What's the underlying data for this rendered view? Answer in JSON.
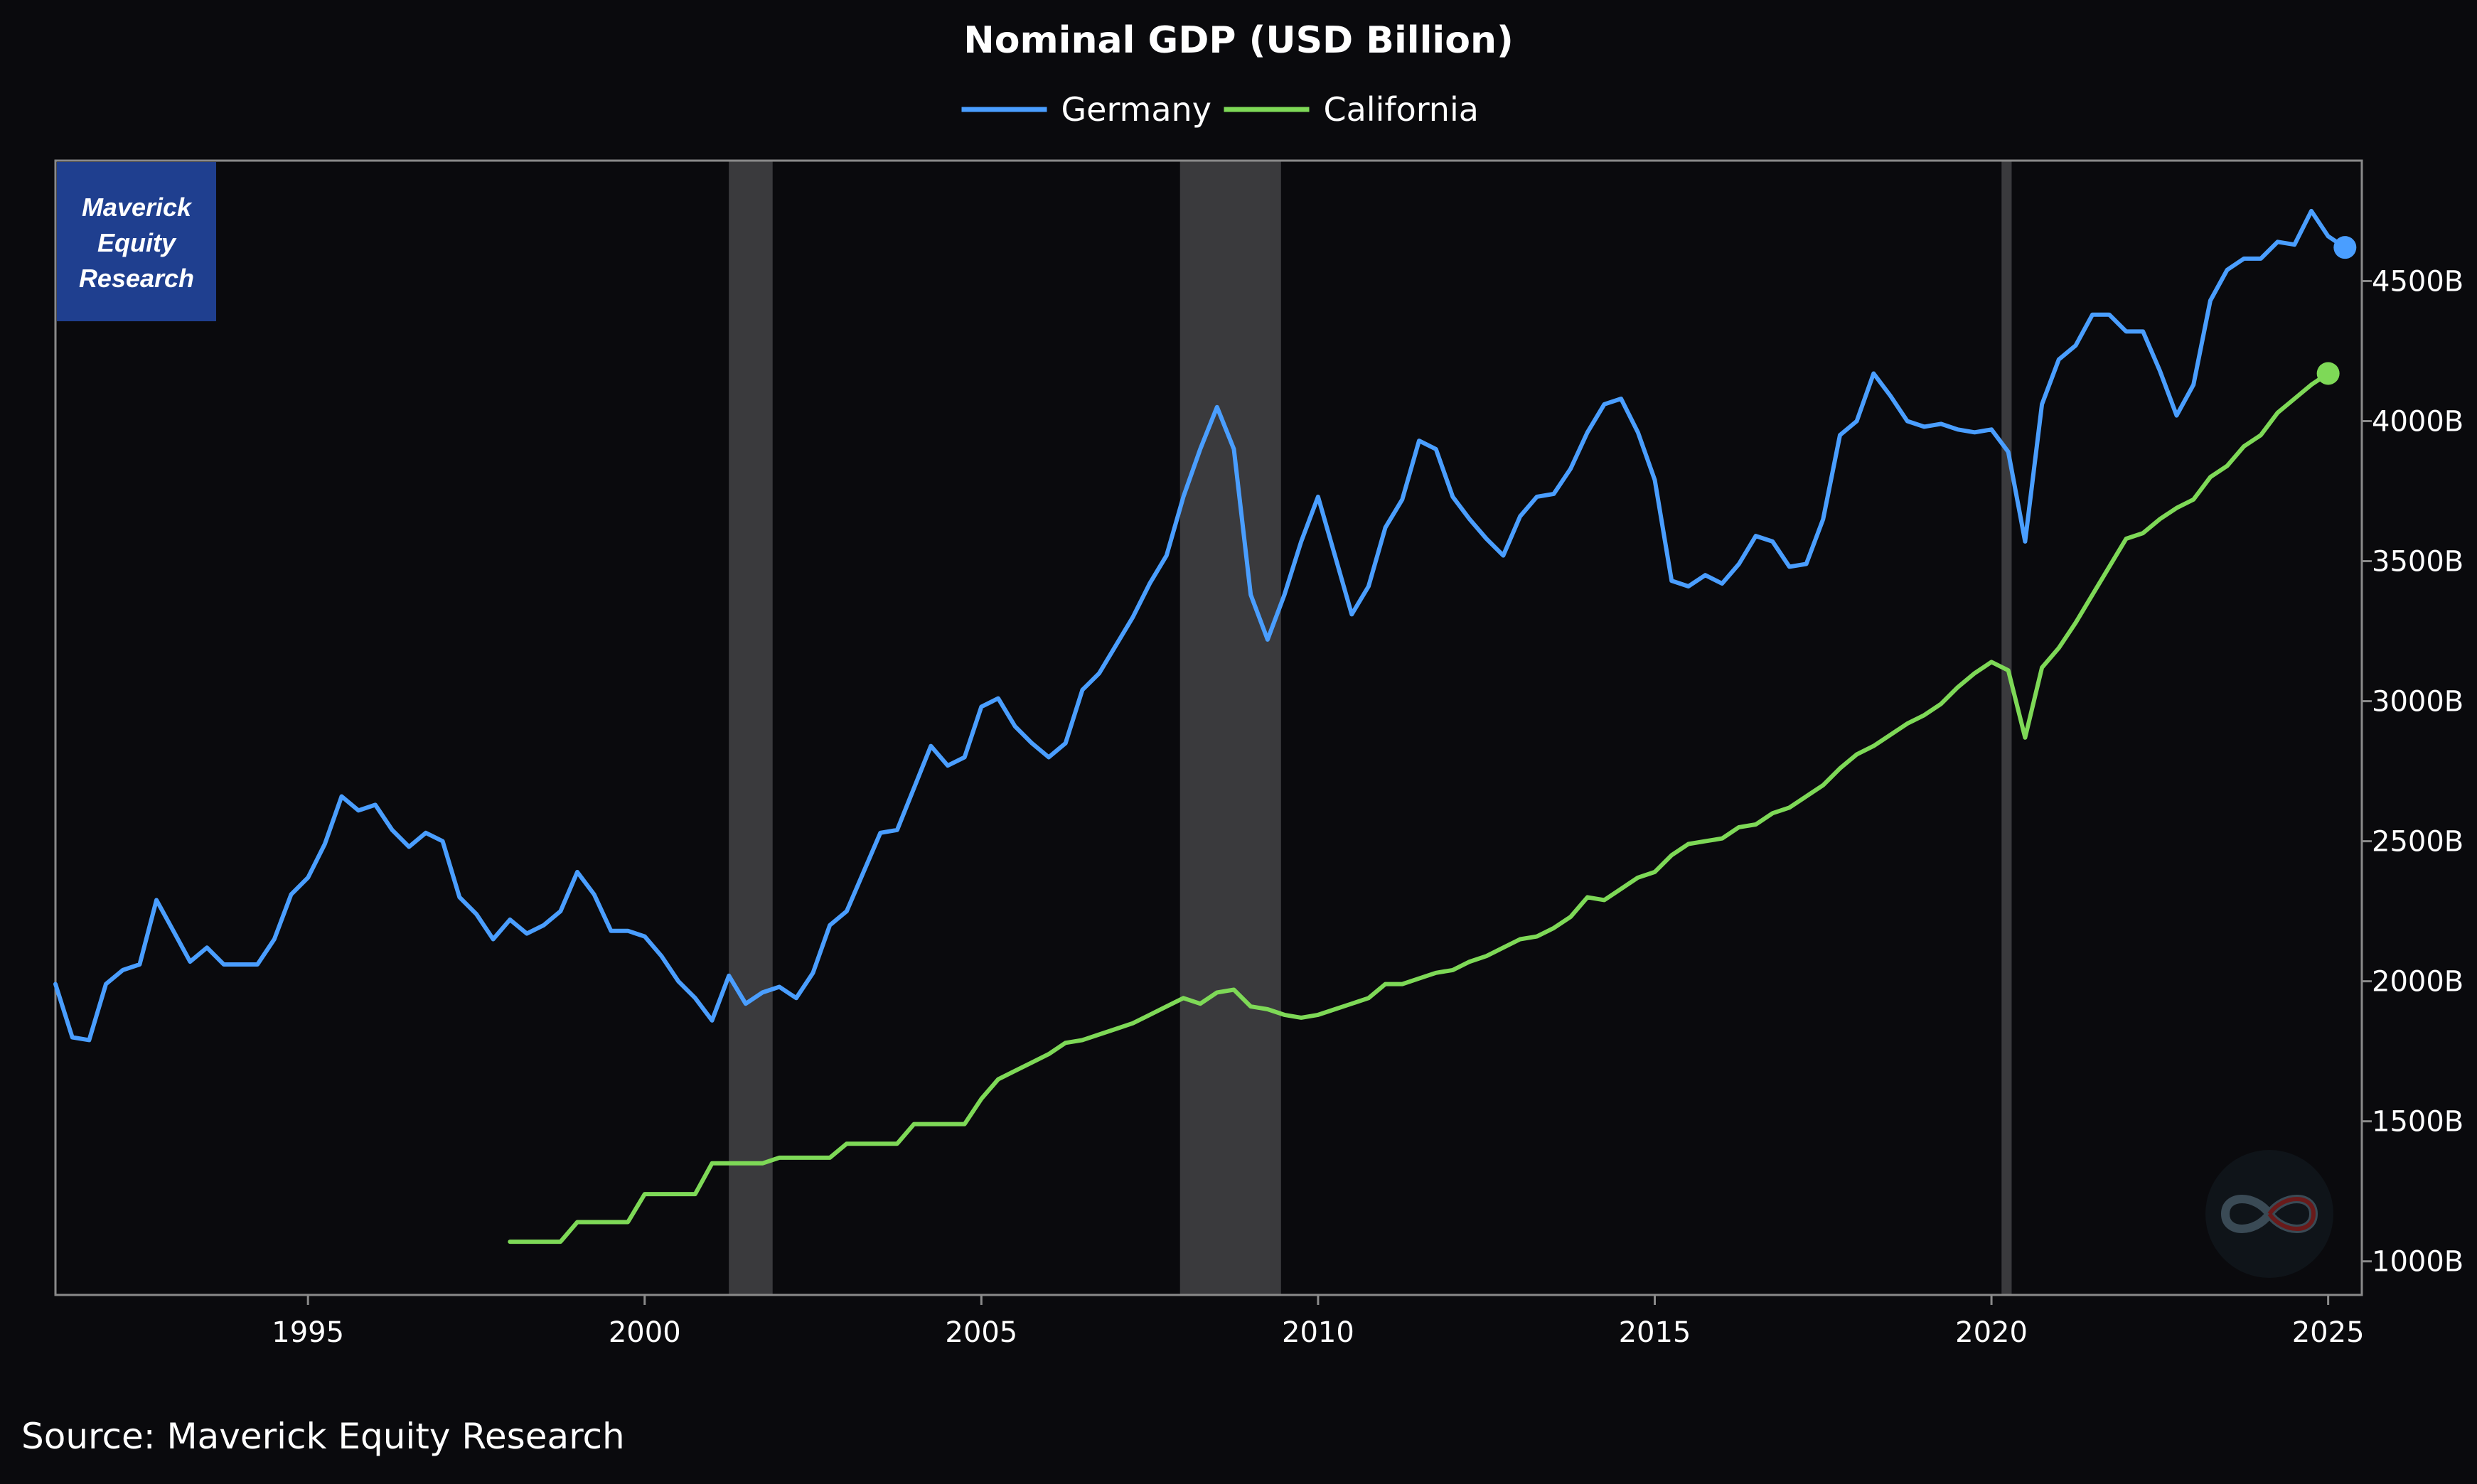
{
  "chart_data": {
    "type": "line",
    "title": "Nominal GDP (USD Billion)",
    "source": "Source: Maverick Equity Research",
    "watermark": [
      "Maverick",
      "Equity",
      "Research"
    ],
    "xlim": [
      1991.25,
      2025.5
    ],
    "ylim": [
      880,
      4930
    ],
    "x_ticks": [
      1995,
      2000,
      2005,
      2010,
      2015,
      2020,
      2025
    ],
    "y_ticks": [
      {
        "value": 1000,
        "label": "1000B"
      },
      {
        "value": 1500,
        "label": "1500B"
      },
      {
        "value": 2000,
        "label": "2000B"
      },
      {
        "value": 2500,
        "label": "2500B"
      },
      {
        "value": 3000,
        "label": "3000B"
      },
      {
        "value": 3500,
        "label": "3500B"
      },
      {
        "value": 4000,
        "label": "4000B"
      },
      {
        "value": 4500,
        "label": "4500B"
      }
    ],
    "recessions": [
      [
        2001.25,
        2001.9
      ],
      [
        2007.95,
        2009.45
      ],
      [
        2020.15,
        2020.3
      ]
    ],
    "legend_position": "top-center",
    "grid": false,
    "colors": {
      "background": "#0a0a0d",
      "recession": "#3a3a3d",
      "axis": "#8a8a8a",
      "watermark_bg": "#1f3f8f"
    },
    "series": [
      {
        "name": "Germany",
        "color": "#4a9eff",
        "points": [
          [
            1991.25,
            1990
          ],
          [
            1991.5,
            1800
          ],
          [
            1991.75,
            1790
          ],
          [
            1992.0,
            1990
          ],
          [
            1992.25,
            2040
          ],
          [
            1992.5,
            2060
          ],
          [
            1992.75,
            2290
          ],
          [
            1993.0,
            2180
          ],
          [
            1993.25,
            2070
          ],
          [
            1993.5,
            2120
          ],
          [
            1993.75,
            2060
          ],
          [
            1994.0,
            2060
          ],
          [
            1994.25,
            2060
          ],
          [
            1994.5,
            2150
          ],
          [
            1994.75,
            2310
          ],
          [
            1995.0,
            2370
          ],
          [
            1995.25,
            2490
          ],
          [
            1995.5,
            2660
          ],
          [
            1995.75,
            2610
          ],
          [
            1996.0,
            2630
          ],
          [
            1996.25,
            2540
          ],
          [
            1996.5,
            2480
          ],
          [
            1996.75,
            2530
          ],
          [
            1997.0,
            2500
          ],
          [
            1997.25,
            2300
          ],
          [
            1997.5,
            2240
          ],
          [
            1997.75,
            2150
          ],
          [
            1998.0,
            2220
          ],
          [
            1998.25,
            2170
          ],
          [
            1998.5,
            2200
          ],
          [
            1998.75,
            2250
          ],
          [
            1999.0,
            2390
          ],
          [
            1999.25,
            2310
          ],
          [
            1999.5,
            2180
          ],
          [
            1999.75,
            2180
          ],
          [
            2000.0,
            2160
          ],
          [
            2000.25,
            2090
          ],
          [
            2000.5,
            2000
          ],
          [
            2000.75,
            1940
          ],
          [
            2001.0,
            1860
          ],
          [
            2001.25,
            2020
          ],
          [
            2001.5,
            1920
          ],
          [
            2001.75,
            1960
          ],
          [
            2002.0,
            1980
          ],
          [
            2002.25,
            1940
          ],
          [
            2002.5,
            2030
          ],
          [
            2002.75,
            2200
          ],
          [
            2003.0,
            2250
          ],
          [
            2003.25,
            2390
          ],
          [
            2003.5,
            2530
          ],
          [
            2003.75,
            2540
          ],
          [
            2004.0,
            2690
          ],
          [
            2004.25,
            2840
          ],
          [
            2004.5,
            2770
          ],
          [
            2004.75,
            2800
          ],
          [
            2005.0,
            2980
          ],
          [
            2005.25,
            3010
          ],
          [
            2005.5,
            2910
          ],
          [
            2005.75,
            2850
          ],
          [
            2006.0,
            2800
          ],
          [
            2006.25,
            2850
          ],
          [
            2006.5,
            3040
          ],
          [
            2006.75,
            3100
          ],
          [
            2007.0,
            3200
          ],
          [
            2007.25,
            3300
          ],
          [
            2007.5,
            3420
          ],
          [
            2007.75,
            3520
          ],
          [
            2008.0,
            3730
          ],
          [
            2008.25,
            3900
          ],
          [
            2008.5,
            4050
          ],
          [
            2008.75,
            3900
          ],
          [
            2009.0,
            3380
          ],
          [
            2009.25,
            3220
          ],
          [
            2009.5,
            3380
          ],
          [
            2009.75,
            3570
          ],
          [
            2010.0,
            3730
          ],
          [
            2010.25,
            3520
          ],
          [
            2010.5,
            3310
          ],
          [
            2010.75,
            3410
          ],
          [
            2011.0,
            3620
          ],
          [
            2011.25,
            3720
          ],
          [
            2011.5,
            3930
          ],
          [
            2011.75,
            3900
          ],
          [
            2012.0,
            3730
          ],
          [
            2012.25,
            3650
          ],
          [
            2012.5,
            3580
          ],
          [
            2012.75,
            3520
          ],
          [
            2013.0,
            3660
          ],
          [
            2013.25,
            3730
          ],
          [
            2013.5,
            3740
          ],
          [
            2013.75,
            3830
          ],
          [
            2014.0,
            3960
          ],
          [
            2014.25,
            4060
          ],
          [
            2014.5,
            4080
          ],
          [
            2014.75,
            3960
          ],
          [
            2015.0,
            3790
          ],
          [
            2015.25,
            3430
          ],
          [
            2015.5,
            3410
          ],
          [
            2015.75,
            3450
          ],
          [
            2016.0,
            3420
          ],
          [
            2016.25,
            3490
          ],
          [
            2016.5,
            3590
          ],
          [
            2016.75,
            3570
          ],
          [
            2017.0,
            3480
          ],
          [
            2017.25,
            3490
          ],
          [
            2017.5,
            3650
          ],
          [
            2017.75,
            3950
          ],
          [
            2018.0,
            4000
          ],
          [
            2018.25,
            4170
          ],
          [
            2018.5,
            4090
          ],
          [
            2018.75,
            4000
          ],
          [
            2019.0,
            3980
          ],
          [
            2019.25,
            3990
          ],
          [
            2019.5,
            3970
          ],
          [
            2019.75,
            3960
          ],
          [
            2020.0,
            3970
          ],
          [
            2020.25,
            3890
          ],
          [
            2020.5,
            3570
          ],
          [
            2020.75,
            4060
          ],
          [
            2021.0,
            4220
          ],
          [
            2021.25,
            4270
          ],
          [
            2021.5,
            4380
          ],
          [
            2021.75,
            4380
          ],
          [
            2022.0,
            4320
          ],
          [
            2022.25,
            4320
          ],
          [
            2022.5,
            4180
          ],
          [
            2022.75,
            4020
          ],
          [
            2023.0,
            4130
          ],
          [
            2023.25,
            4430
          ],
          [
            2023.5,
            4540
          ],
          [
            2023.75,
            4580
          ],
          [
            2024.0,
            4580
          ],
          [
            2024.25,
            4640
          ],
          [
            2024.5,
            4630
          ],
          [
            2024.75,
            4750
          ],
          [
            2025.0,
            4660
          ],
          [
            2025.25,
            4620
          ]
        ]
      },
      {
        "name": "California",
        "color": "#7ed957",
        "points": [
          [
            1998.0,
            1070
          ],
          [
            1998.25,
            1070
          ],
          [
            1998.5,
            1070
          ],
          [
            1998.75,
            1070
          ],
          [
            1999.0,
            1140
          ],
          [
            1999.25,
            1140
          ],
          [
            1999.5,
            1140
          ],
          [
            1999.75,
            1140
          ],
          [
            2000.0,
            1240
          ],
          [
            2000.25,
            1240
          ],
          [
            2000.5,
            1240
          ],
          [
            2000.75,
            1240
          ],
          [
            2001.0,
            1350
          ],
          [
            2001.25,
            1350
          ],
          [
            2001.5,
            1350
          ],
          [
            2001.75,
            1350
          ],
          [
            2002.0,
            1370
          ],
          [
            2002.25,
            1370
          ],
          [
            2002.5,
            1370
          ],
          [
            2002.75,
            1370
          ],
          [
            2003.0,
            1420
          ],
          [
            2003.25,
            1420
          ],
          [
            2003.5,
            1420
          ],
          [
            2003.75,
            1420
          ],
          [
            2004.0,
            1490
          ],
          [
            2004.25,
            1490
          ],
          [
            2004.5,
            1490
          ],
          [
            2004.75,
            1490
          ],
          [
            2005.0,
            1580
          ],
          [
            2005.25,
            1650
          ],
          [
            2005.5,
            1680
          ],
          [
            2005.75,
            1710
          ],
          [
            2006.0,
            1740
          ],
          [
            2006.25,
            1780
          ],
          [
            2006.5,
            1790
          ],
          [
            2006.75,
            1810
          ],
          [
            2007.0,
            1830
          ],
          [
            2007.25,
            1850
          ],
          [
            2007.5,
            1880
          ],
          [
            2007.75,
            1910
          ],
          [
            2008.0,
            1940
          ],
          [
            2008.25,
            1920
          ],
          [
            2008.5,
            1960
          ],
          [
            2008.75,
            1970
          ],
          [
            2009.0,
            1910
          ],
          [
            2009.25,
            1900
          ],
          [
            2009.5,
            1880
          ],
          [
            2009.75,
            1870
          ],
          [
            2010.0,
            1880
          ],
          [
            2010.25,
            1900
          ],
          [
            2010.5,
            1920
          ],
          [
            2010.75,
            1940
          ],
          [
            2011.0,
            1990
          ],
          [
            2011.25,
            1990
          ],
          [
            2011.5,
            2010
          ],
          [
            2011.75,
            2030
          ],
          [
            2012.0,
            2040
          ],
          [
            2012.25,
            2070
          ],
          [
            2012.5,
            2090
          ],
          [
            2012.75,
            2120
          ],
          [
            2013.0,
            2150
          ],
          [
            2013.25,
            2160
          ],
          [
            2013.5,
            2190
          ],
          [
            2013.75,
            2230
          ],
          [
            2014.0,
            2300
          ],
          [
            2014.25,
            2290
          ],
          [
            2014.5,
            2330
          ],
          [
            2014.75,
            2370
          ],
          [
            2015.0,
            2390
          ],
          [
            2015.25,
            2450
          ],
          [
            2015.5,
            2490
          ],
          [
            2015.75,
            2500
          ],
          [
            2016.0,
            2510
          ],
          [
            2016.25,
            2550
          ],
          [
            2016.5,
            2560
          ],
          [
            2016.75,
            2600
          ],
          [
            2017.0,
            2620
          ],
          [
            2017.25,
            2660
          ],
          [
            2017.5,
            2700
          ],
          [
            2017.75,
            2760
          ],
          [
            2018.0,
            2810
          ],
          [
            2018.25,
            2840
          ],
          [
            2018.5,
            2880
          ],
          [
            2018.75,
            2920
          ],
          [
            2019.0,
            2950
          ],
          [
            2019.25,
            2990
          ],
          [
            2019.5,
            3050
          ],
          [
            2019.75,
            3100
          ],
          [
            2020.0,
            3140
          ],
          [
            2020.25,
            3110
          ],
          [
            2020.5,
            2870
          ],
          [
            2020.75,
            3120
          ],
          [
            2021.0,
            3190
          ],
          [
            2021.25,
            3280
          ],
          [
            2021.5,
            3380
          ],
          [
            2021.75,
            3480
          ],
          [
            2022.0,
            3580
          ],
          [
            2022.25,
            3600
          ],
          [
            2022.5,
            3650
          ],
          [
            2022.75,
            3690
          ],
          [
            2023.0,
            3720
          ],
          [
            2023.25,
            3800
          ],
          [
            2023.5,
            3840
          ],
          [
            2023.75,
            3910
          ],
          [
            2024.0,
            3950
          ],
          [
            2024.25,
            4030
          ],
          [
            2024.5,
            4080
          ],
          [
            2024.75,
            4130
          ],
          [
            2025.0,
            4170
          ]
        ]
      }
    ]
  }
}
